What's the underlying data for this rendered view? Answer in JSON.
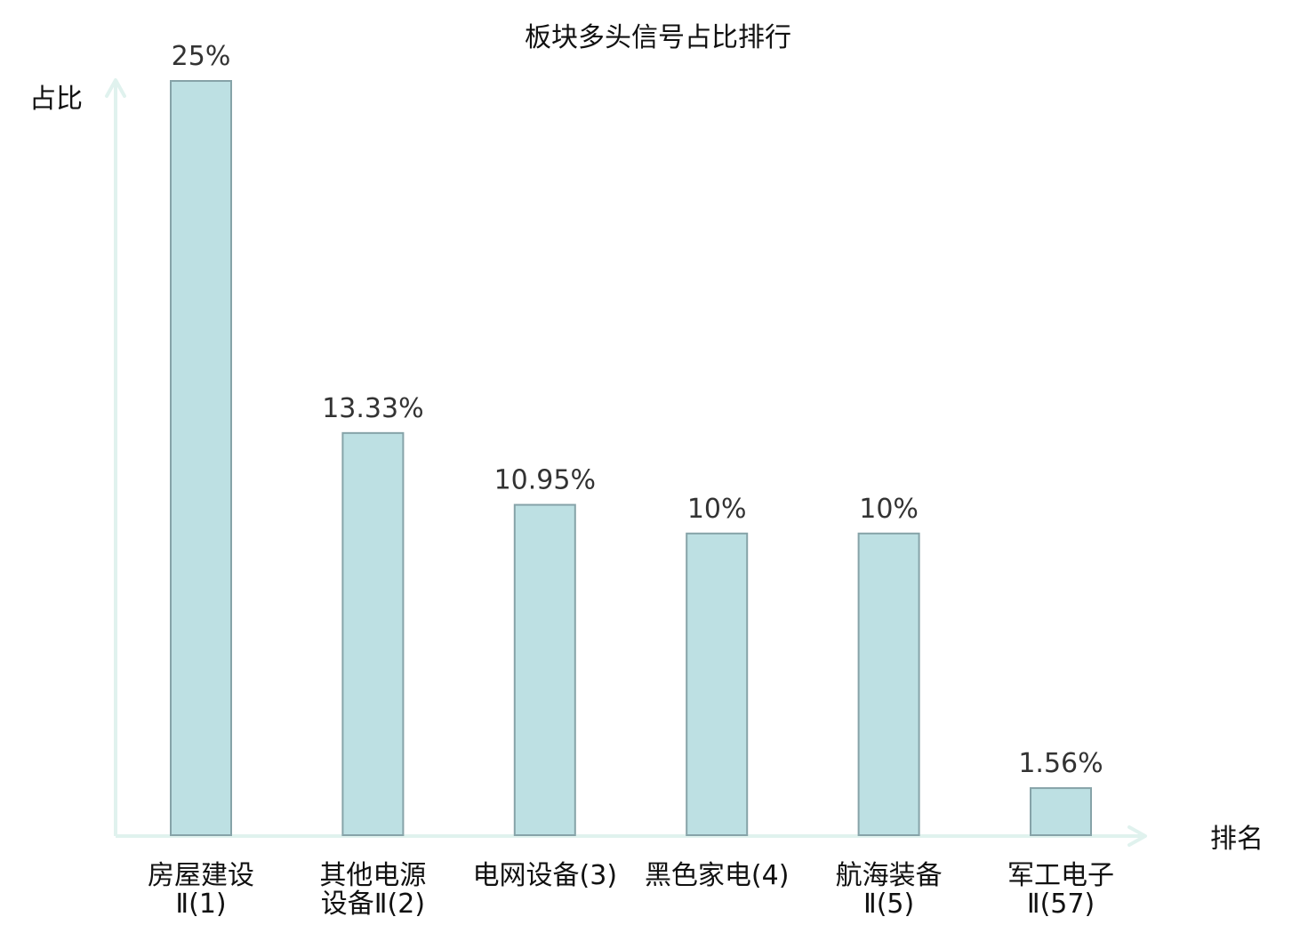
{
  "chart_data": {
    "type": "bar",
    "title": "板块多头信号占比排行",
    "ylabel": "占比",
    "xlabel": "排名",
    "ylim": [
      0,
      25
    ],
    "grid": false,
    "categories": [
      [
        "房屋建设",
        "Ⅱ(1)"
      ],
      [
        "其他电源",
        "设备Ⅱ(2)"
      ],
      [
        "电网设备(3)"
      ],
      [
        "黑色家电(4)"
      ],
      [
        "航海装备",
        "Ⅱ(5)"
      ],
      [
        "军工电子",
        "Ⅱ(57)"
      ]
    ],
    "values": [
      25,
      13.33,
      10.95,
      10,
      10,
      1.56
    ],
    "value_labels": [
      "25%",
      "13.33%",
      "10.95%",
      "10%",
      "10%",
      "1.56%"
    ],
    "highlight_index": 5,
    "colors": {
      "bar_fill": "#bde0e3",
      "bar_stroke": "#86a3a8",
      "axis": "#e0f2ee",
      "highlight_text": "#e8141b",
      "text": "#111111",
      "value_text": "#333333"
    }
  }
}
